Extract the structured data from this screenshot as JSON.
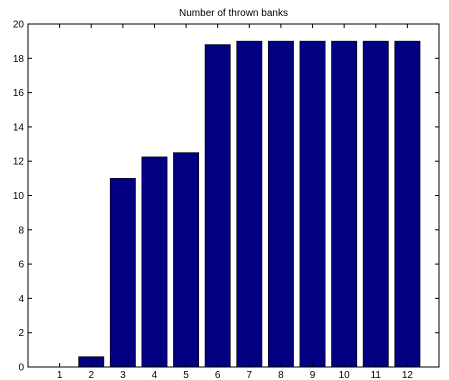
{
  "chart_data": {
    "type": "bar",
    "title": "Number of thrown banks",
    "xlabel": "",
    "ylabel": "",
    "categories": [
      "1",
      "2",
      "3",
      "4",
      "5",
      "6",
      "7",
      "8",
      "9",
      "10",
      "11",
      "12"
    ],
    "values": [
      0,
      0.6,
      11,
      12.25,
      12.5,
      18.8,
      19,
      19,
      19,
      19,
      19,
      19
    ],
    "ylim": [
      0,
      20
    ],
    "yticks": [
      0,
      2,
      4,
      6,
      8,
      10,
      12,
      14,
      16,
      18,
      20
    ],
    "bar_color": "#000080",
    "grid": false
  }
}
